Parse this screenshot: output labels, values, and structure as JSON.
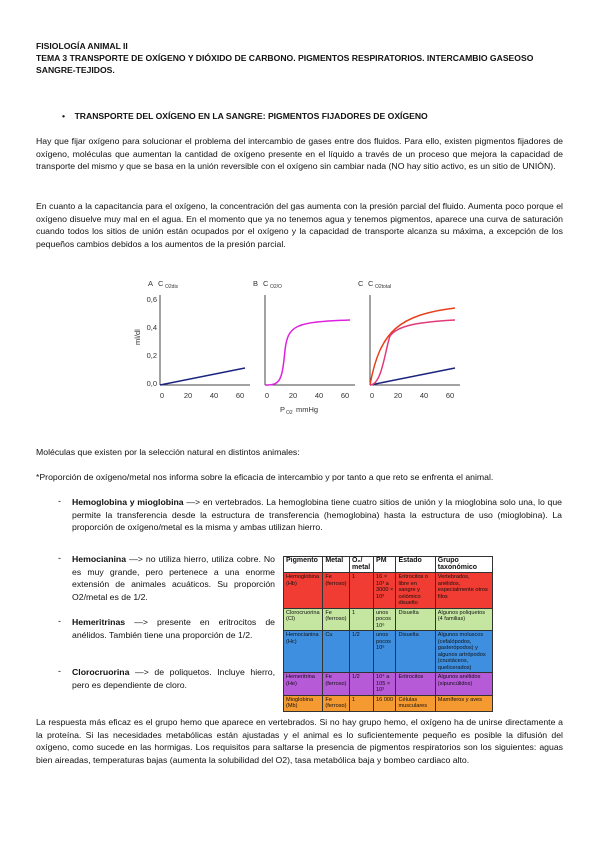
{
  "header": {
    "course": "FISIOLOGÍA ANIMAL II",
    "title_lines": [
      "TEMA 3 TRANSPORTE DE OXÍGENO Y DIÓXIDO DE CARBONO. PIGMENTOS RESPIRATORIOS. INTERCAMBIO GASEOSO",
      "SANGRE-TEJIDOS."
    ]
  },
  "section": {
    "bullet": "TRANSPORTE DEL OXÍGENO EN LA SANGRE: PIGMENTOS FIJADORES DE OXÍGENO"
  },
  "paragraphs": [
    "Hay que fijar oxígeno para solucionar el problema del intercambio de gases entre dos fluidos. Para ello, existen pigmentos fijadores de oxígeno, moléculas que aumentan la cantidad de oxígeno presente en el líquido a través de un proceso que mejora la capacidad de transporte del mismo y que se basa en la unión reversible con el oxígeno sin cambiar nada (NO hay sitio activo, es un sitio de UNIÓN).",
    "En cuanto a la capacitancia para el oxígeno, la concentración del gas aumenta con la presión parcial del fluido. Aumenta poco porque el oxígeno disuelve muy mal en el agua. En el momento que ya no tenemos agua y tenemos pigmentos, aparece una curva de saturación cuando todos los sitios de unión están ocupados por el oxígeno y la capacidad de transporte alcanza su máxima, a excepción de los pequeños cambios debidos a los aumentos de la presión parcial.",
    "Moléculas que existen por la selección natural en distintos animales:",
    "*Proporción de oxígeno/metal nos informa sobre la eficacia de intercambio y por tanto a que reto se enfrenta el animal."
  ],
  "figure": {
    "panels": [
      "A",
      "B",
      "C"
    ],
    "panel_labels": [
      "C",
      "C",
      "C"
    ],
    "panel_subs": [
      "O2dis",
      "O2/O",
      "O2total"
    ],
    "y_label": "ml/dl",
    "x_label": "P",
    "x_label_sub": "O2",
    "x_label_unit": "mmHg",
    "yticks": [
      "0,6",
      "0,4",
      "0,2",
      "0,0"
    ],
    "xticks": [
      "0",
      "20",
      "40",
      "60"
    ]
  },
  "items": [
    {
      "term": "Hemoglobina y mioglobina",
      "text": " —> en vertebrados. La hemoglobina tiene cuatro sitios de unión y la mioglobina solo una, lo que permite la transferencia desde la estructura de transferencia (hemoglobina) hasta la estructura de uso (mioglobina). La proporción de oxígeno/metal es la misma y ambas utilizan hierro."
    },
    {
      "term": "Hemocianina",
      "text": " —> no utiliza hierro, utiliza cobre. No es muy grande, pero pertenece a una enorme extensión de animales acuáticos. Su proporción O2/metal es de 1/2."
    },
    {
      "term": "Hemeritrinas",
      "text": " —> presente en eritrocitos de anélidos. También tiene una proporción de 1/2."
    },
    {
      "term": "Clorocruorina",
      "text": " —> de poliquetos. Incluye hierro, pero es dependiente de cloro."
    }
  ],
  "table": {
    "headers": [
      "Pigmento",
      "Metal",
      "O₂/ metal",
      "PM",
      "Estado",
      "Grupo taxonómico"
    ],
    "rows": [
      [
        "Hemoglobina (Hb)",
        "Fe (ferroso)",
        "1",
        "16 × 10³ a 3000 × 10³",
        "Eritrocitos o libre en sangre y celómico disuelto",
        "Vertebrados, anélidos, especialmente otros filos"
      ],
      [
        "Clorocruorina (Cl)",
        "Fe (ferroso)",
        "1",
        "unos pocos 10⁶",
        "Disuelta",
        "Algunos poliquetos (4 familias)"
      ],
      [
        "Hemocianina (Hc)",
        "Cu",
        "1/2",
        "unos pocos 10⁶",
        "Disuelta",
        "Algunos moluscos (cefalópodos, gasterópodos) y algunos artrópodos (crustáceos, quelicerados)"
      ],
      [
        "Hemeritrina (He)",
        "Fe (ferroso)",
        "1/2",
        "10⁴ a 105 × 10³",
        "Eritrocitos",
        "Algunos anélidos (sipuncúlidos)"
      ],
      [
        "Mioglobina (Mb)",
        "Fe (ferroso)",
        "1",
        "16 000",
        "Células musculares",
        "Mamíferos y aves"
      ]
    ]
  },
  "closing": "La respuesta más eficaz es el grupo hemo que aparece en vertebrados. Si no hay grupo hemo, el oxígeno ha de unirse directamente a la proteína. Si las necesidades metabólicas están ajustadas y el animal es lo suficientemente pequeño es posible la difusión del oxígeno, como sucede en las hormigas. Los requisitos para saltarse la presencia de pigmentos respiratorios son los siguientes: aguas bien aireadas, temperaturas bajas (aumenta la solubilidad del O2), tasa metabólica baja y bombeo cardiaco alto."
}
